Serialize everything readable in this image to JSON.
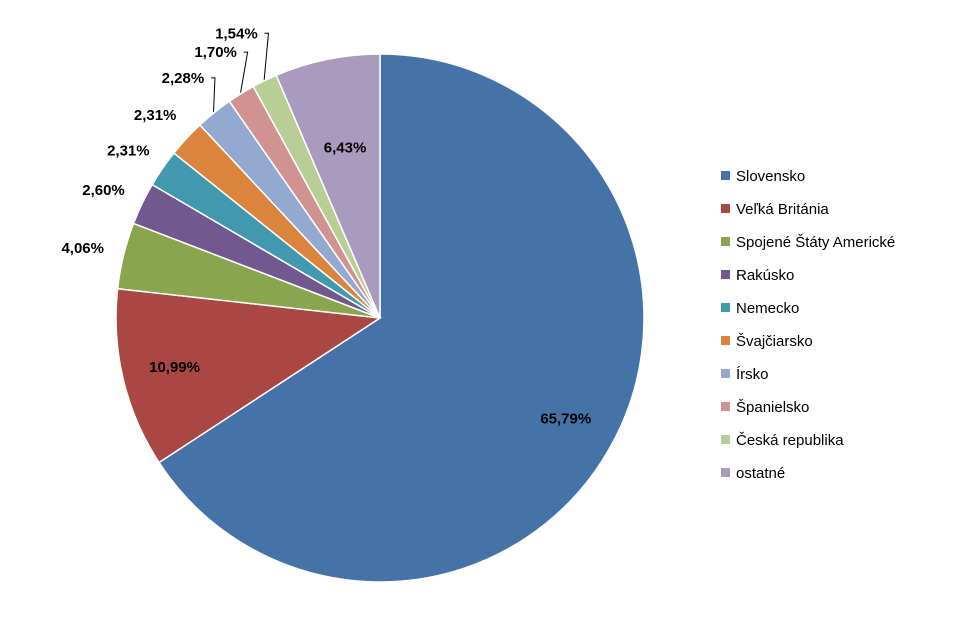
{
  "chart_data": {
    "type": "pie",
    "title": "",
    "legend_position": "right",
    "slices": [
      {
        "label": "Slovensko",
        "value": 65.79,
        "display": "65,79%",
        "color": "#4572A7"
      },
      {
        "label": "Veľká Británia",
        "value": 10.99,
        "display": "10,99%",
        "color": "#AA4643"
      },
      {
        "label": "Spojené Štáty Americké",
        "value": 4.06,
        "display": "4,06%",
        "color": "#89A54E"
      },
      {
        "label": "Rakúsko",
        "value": 2.6,
        "display": "2,60%",
        "color": "#71588F"
      },
      {
        "label": "Nemecko",
        "value": 2.31,
        "display": "2,31%",
        "color": "#4198AF"
      },
      {
        "label": "Švajčiarsko",
        "value": 2.31,
        "display": "2,31%",
        "color": "#DB843D"
      },
      {
        "label": "Írsko",
        "value": 2.28,
        "display": "2,28%",
        "color": "#93A9CF"
      },
      {
        "label": "Španielsko",
        "value": 1.7,
        "display": "1,70%",
        "color": "#D19392"
      },
      {
        "label": "Česká republika",
        "value": 1.54,
        "display": "1,54%",
        "color": "#B9CD96"
      },
      {
        "label": "ostatné",
        "value": 6.43,
        "display": "6,43%",
        "color": "#A99BBD"
      }
    ]
  }
}
